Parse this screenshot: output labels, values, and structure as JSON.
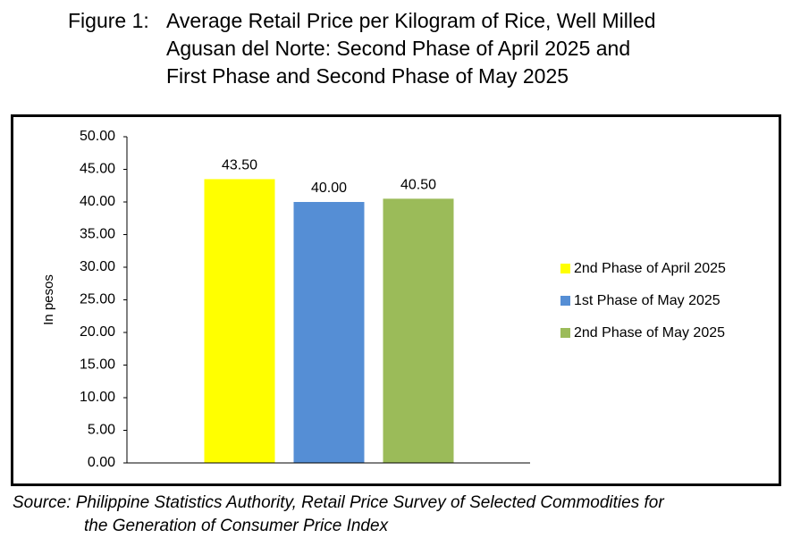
{
  "figure": {
    "prefix": "Figure 1:",
    "title_line1": "Average Retail Price per Kilogram of Rice, Well Milled",
    "title_line2": "Agusan del Norte: Second Phase of April 2025 and",
    "title_line3": "First Phase and Second Phase of May 2025"
  },
  "source": {
    "line1": "Source: Philippine Statistics Authority, Retail Price Survey of Selected Commodities for",
    "line2": "the Generation of Consumer Price Index"
  },
  "chart_data": {
    "type": "bar",
    "ylabel": "In pesos",
    "ylim": [
      0,
      50
    ],
    "ytick_step": 5,
    "ytick_labels": [
      "0.00",
      "5.00",
      "10.00",
      "15.00",
      "20.00",
      "25.00",
      "30.00",
      "35.00",
      "40.00",
      "45.00",
      "50.00"
    ],
    "grid": false,
    "legend_position": "right",
    "series": [
      {
        "name": "2nd Phase of April 2025",
        "value": 43.5,
        "label": "43.50",
        "color": "#FFFF00"
      },
      {
        "name": "1st Phase of May 2025",
        "value": 40.0,
        "label": "40.00",
        "color": "#558ED5"
      },
      {
        "name": "2nd Phase of May 2025",
        "value": 40.5,
        "label": "40.50",
        "color": "#9BBB59"
      }
    ]
  }
}
